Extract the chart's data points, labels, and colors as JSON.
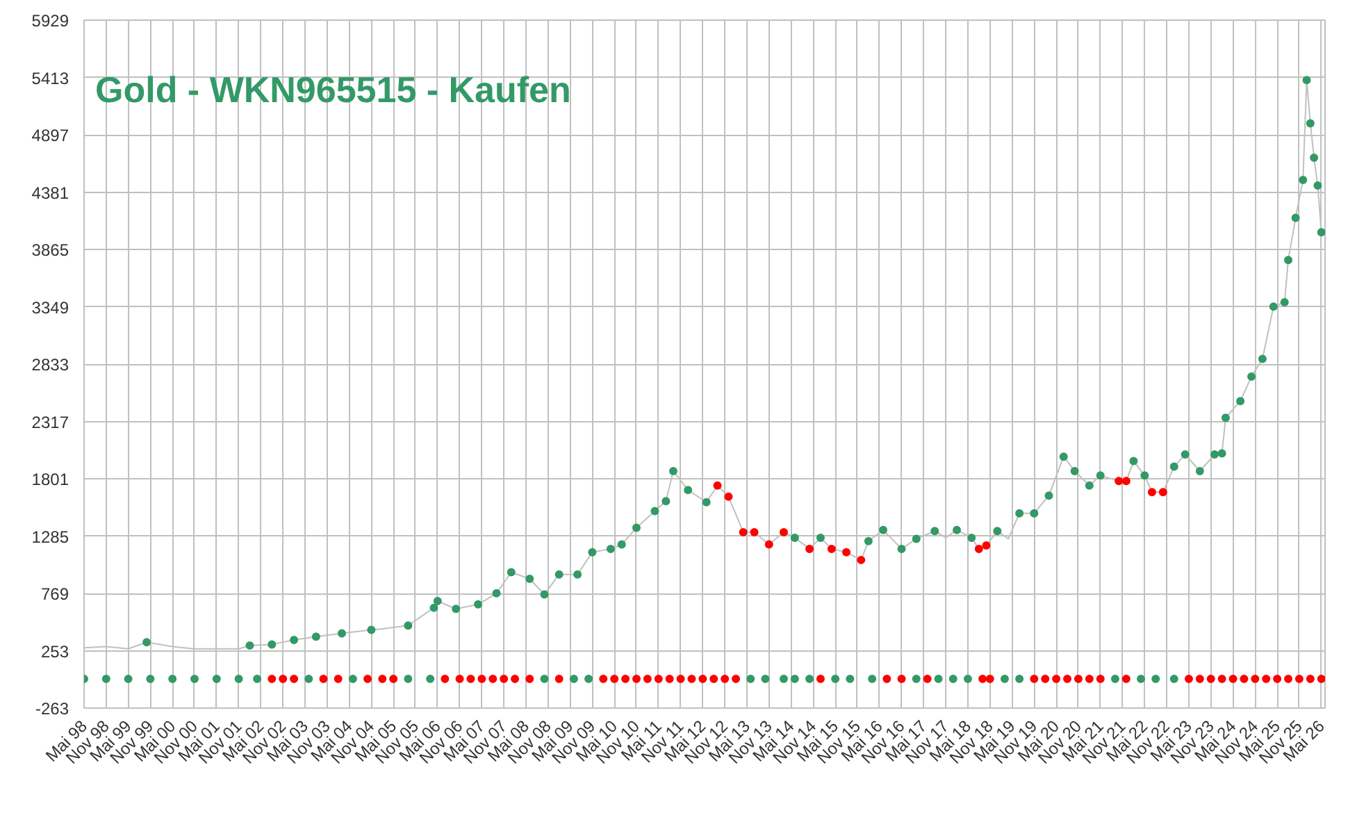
{
  "chart_data": {
    "type": "scatter",
    "title": "Gold - WKN965515 - Kaufen",
    "xlim": [
      "1998-05",
      "2026-06"
    ],
    "ylim": [
      -263,
      5929
    ],
    "yticks": [
      -263,
      253,
      769,
      1285,
      1801,
      2317,
      2833,
      3349,
      3865,
      4381,
      4897,
      5413,
      5929
    ],
    "xticks": [
      {
        "value": "1998-05",
        "label": "Mai 98"
      },
      {
        "value": "1998-11",
        "label": "Nov 98"
      },
      {
        "value": "1999-05",
        "label": "Mai 99"
      },
      {
        "value": "1999-11",
        "label": "Nov 99"
      },
      {
        "value": "2000-05",
        "label": "Mai 00"
      },
      {
        "value": "2000-11",
        "label": "Nov 00"
      },
      {
        "value": "2001-05",
        "label": "Mai 01"
      },
      {
        "value": "2001-11",
        "label": "Nov 01"
      },
      {
        "value": "2002-05",
        "label": "Mai 02"
      },
      {
        "value": "2002-11",
        "label": "Nov 02"
      },
      {
        "value": "2003-05",
        "label": "Mai 03"
      },
      {
        "value": "2003-11",
        "label": "Nov 03"
      },
      {
        "value": "2004-05",
        "label": "Mai 04"
      },
      {
        "value": "2004-11",
        "label": "Nov 04"
      },
      {
        "value": "2005-05",
        "label": "Mai 05"
      },
      {
        "value": "2005-11",
        "label": "Nov 05"
      },
      {
        "value": "2006-05",
        "label": "Mai 06"
      },
      {
        "value": "2006-11",
        "label": "Nov 06"
      },
      {
        "value": "2007-05",
        "label": "Mai 07"
      },
      {
        "value": "2007-11",
        "label": "Nov 07"
      },
      {
        "value": "2008-05",
        "label": "Mai 08"
      },
      {
        "value": "2008-11",
        "label": "Nov 08"
      },
      {
        "value": "2009-05",
        "label": "Mai 09"
      },
      {
        "value": "2009-11",
        "label": "Nov 09"
      },
      {
        "value": "2010-05",
        "label": "Mai 10"
      },
      {
        "value": "2010-11",
        "label": "Nov 10"
      },
      {
        "value": "2011-05",
        "label": "Mai 11"
      },
      {
        "value": "2011-11",
        "label": "Nov 11"
      },
      {
        "value": "2012-05",
        "label": "Mai 12"
      },
      {
        "value": "2012-11",
        "label": "Nov 12"
      },
      {
        "value": "2013-05",
        "label": "Mai 13"
      },
      {
        "value": "2013-11",
        "label": "Nov 13"
      },
      {
        "value": "2014-05",
        "label": "Mai 14"
      },
      {
        "value": "2014-11",
        "label": "Nov 14"
      },
      {
        "value": "2015-05",
        "label": "Mai 15"
      },
      {
        "value": "2015-11",
        "label": "Nov 15"
      },
      {
        "value": "2016-05",
        "label": "Mai 16"
      },
      {
        "value": "2016-11",
        "label": "Nov 16"
      },
      {
        "value": "2017-05",
        "label": "Mai 17"
      },
      {
        "value": "2017-11",
        "label": "Nov 17"
      },
      {
        "value": "2018-05",
        "label": "Mai 18"
      },
      {
        "value": "2018-11",
        "label": "Nov 18"
      },
      {
        "value": "2019-05",
        "label": "Mai 19"
      },
      {
        "value": "2019-11",
        "label": "Nov 19"
      },
      {
        "value": "2020-05",
        "label": "Mai 20"
      },
      {
        "value": "2020-11",
        "label": "Nov 20"
      },
      {
        "value": "2021-05",
        "label": "Mai 21"
      },
      {
        "value": "2021-11",
        "label": "Nov 21"
      },
      {
        "value": "2022-05",
        "label": "Mai 22"
      },
      {
        "value": "2022-11",
        "label": "Nov 22"
      },
      {
        "value": "2023-05",
        "label": "Mai 23"
      },
      {
        "value": "2023-11",
        "label": "Nov 23"
      },
      {
        "value": "2024-05",
        "label": "Mai 24"
      },
      {
        "value": "2024-11",
        "label": "Nov 24"
      },
      {
        "value": "2025-05",
        "label": "Mai 25"
      },
      {
        "value": "2025-11",
        "label": "Nov 25"
      },
      {
        "value": "2026-05",
        "label": "Mai 26"
      }
    ],
    "grid": true,
    "marker": "circle",
    "series": [
      {
        "type": "line",
        "marker": "none",
        "color": "#c0c0c0",
        "x": [
          "1998-05",
          "1998-11",
          "1999-05",
          "1999-10",
          "2000-05",
          "2000-11",
          "2001-05",
          "2001-11",
          "2002-02",
          "2002-08",
          "2003-02",
          "2003-08",
          "2004-03",
          "2004-11",
          "2005-02",
          "2005-09",
          "2006-04",
          "2006-05",
          "2006-10",
          "2007-04",
          "2007-09",
          "2008-01",
          "2008-06",
          "2008-10",
          "2009-02",
          "2009-07",
          "2009-11",
          "2010-04",
          "2010-07",
          "2010-11",
          "2011-04",
          "2011-07",
          "2011-09",
          "2012-01",
          "2012-06",
          "2012-09",
          "2012-12",
          "2013-04",
          "2013-07",
          "2013-11",
          "2014-03",
          "2014-06",
          "2014-10",
          "2015-01",
          "2015-04",
          "2015-08",
          "2015-12",
          "2016-02",
          "2016-06",
          "2016-11",
          "2017-03",
          "2017-08",
          "2017-11",
          "2018-02",
          "2018-06",
          "2018-08",
          "2018-10",
          "2019-01",
          "2019-04",
          "2019-07",
          "2019-11",
          "2020-03",
          "2020-07",
          "2020-10",
          "2021-02",
          "2021-05",
          "2021-10",
          "2021-12",
          "2022-02",
          "2022-05",
          "2022-07",
          "2022-10",
          "2023-01",
          "2023-04",
          "2023-08",
          "2023-12",
          "2024-02",
          "2024-03",
          "2024-07",
          "2024-10",
          "2025-01",
          "2025-04",
          "2025-07",
          "2025-08",
          "2025-10",
          "2025-12",
          "2026-01",
          "2026-02",
          "2026-03",
          "2026-04",
          "2026-05"
        ],
        "values": [
          280,
          290,
          270,
          330,
          290,
          270,
          270,
          270,
          300,
          310,
          350,
          380,
          410,
          440,
          450,
          480,
          640,
          700,
          630,
          670,
          770,
          960,
          900,
          760,
          940,
          940,
          1140,
          1170,
          1210,
          1360,
          1510,
          1600,
          1870,
          1700,
          1590,
          1740,
          1640,
          1320,
          1320,
          1210,
          1320,
          1270,
          1170,
          1270,
          1170,
          1140,
          1070,
          1240,
          1340,
          1170,
          1260,
          1330,
          1270,
          1340,
          1270,
          1170,
          1200,
          1330,
          1260,
          1490,
          1490,
          1650,
          2000,
          1870,
          1740,
          1830,
          1780,
          1780,
          1960,
          1830,
          1680,
          1680,
          1910,
          2020,
          1870,
          2020,
          2030,
          2350,
          2500,
          2720,
          2880,
          3350,
          3390,
          3770,
          4150,
          4490,
          5390,
          5000,
          4690,
          4440,
          4020
        ]
      },
      {
        "color": "#339966",
        "x": [
          "1999-10",
          "2002-02",
          "2002-08",
          "2003-02",
          "2003-08",
          "2004-03",
          "2004-11",
          "2005-09",
          "2006-04",
          "2006-05",
          "2006-10",
          "2007-04",
          "2007-09",
          "2008-01",
          "2008-06",
          "2008-10",
          "2009-02",
          "2009-07",
          "2009-11",
          "2010-04",
          "2010-07",
          "2010-11",
          "2011-04",
          "2011-07",
          "2011-09",
          "2012-01",
          "2012-06",
          "2014-06",
          "2015-01",
          "2016-02",
          "2016-06",
          "2016-11",
          "2017-03",
          "2017-08",
          "2018-02",
          "2018-06",
          "2019-01",
          "2019-07",
          "2019-11",
          "2020-03",
          "2020-07",
          "2020-10",
          "2021-02",
          "2021-05",
          "2022-02",
          "2022-05",
          "2023-01",
          "2023-04",
          "2023-08",
          "2023-12",
          "2024-02",
          "2024-03",
          "2024-07",
          "2024-10",
          "2025-01",
          "2025-04",
          "2025-07",
          "2025-08",
          "2025-10",
          "2025-12",
          "2026-01",
          "2026-02",
          "2026-03",
          "2026-04",
          "2026-05"
        ],
        "values": [
          330,
          300,
          310,
          350,
          380,
          410,
          440,
          480,
          640,
          700,
          630,
          670,
          770,
          960,
          900,
          760,
          940,
          940,
          1140,
          1170,
          1210,
          1360,
          1510,
          1600,
          1870,
          1700,
          1590,
          1270,
          1270,
          1240,
          1340,
          1170,
          1260,
          1330,
          1340,
          1270,
          1330,
          1490,
          1490,
          1650,
          2000,
          1870,
          1740,
          1830,
          1960,
          1830,
          1910,
          2020,
          1870,
          2020,
          2030,
          2350,
          2500,
          2720,
          2880,
          3350,
          3390,
          3770,
          4150,
          4490,
          5390,
          5000,
          4690,
          4440,
          4020
        ]
      },
      {
        "color": "#ff0000",
        "x": [
          "2012-09",
          "2012-12",
          "2013-04",
          "2013-07",
          "2013-11",
          "2014-03",
          "2014-10",
          "2015-04",
          "2015-08",
          "2015-12",
          "2018-08",
          "2018-10",
          "2021-10",
          "2021-12",
          "2022-07",
          "2022-10"
        ],
        "values": [
          1740,
          1640,
          1320,
          1320,
          1210,
          1320,
          1170,
          1170,
          1140,
          1070,
          1170,
          1200,
          1780,
          1780,
          1680,
          1680
        ]
      },
      {
        "color": "#339966",
        "x": [
          "1998-05",
          "1998-11",
          "1999-05",
          "1999-11",
          "2000-05",
          "2000-11",
          "2001-05",
          "2001-11",
          "2002-04",
          "2003-06",
          "2004-06",
          "2005-09",
          "2006-03",
          "2008-10",
          "2009-06",
          "2009-10",
          "2013-06",
          "2013-10",
          "2014-03",
          "2014-06",
          "2014-10",
          "2015-05",
          "2015-09",
          "2016-03",
          "2017-03",
          "2017-09",
          "2018-01",
          "2018-05",
          "2019-03",
          "2019-07",
          "2021-09",
          "2022-04",
          "2022-08",
          "2023-01"
        ],
        "values": [
          0,
          0,
          0,
          0,
          0,
          0,
          0,
          0,
          0,
          0,
          0,
          0,
          0,
          0,
          0,
          0,
          0,
          0,
          0,
          0,
          0,
          0,
          0,
          0,
          0,
          0,
          0,
          0,
          0,
          0,
          0,
          0,
          0,
          0
        ]
      },
      {
        "color": "#ff0000",
        "x": [
          "2002-08",
          "2002-11",
          "2003-02",
          "2003-10",
          "2004-02",
          "2004-10",
          "2005-02",
          "2005-05",
          "2006-07",
          "2006-11",
          "2007-02",
          "2007-05",
          "2007-08",
          "2007-11",
          "2008-02",
          "2008-06",
          "2009-02",
          "2010-02",
          "2010-05",
          "2010-08",
          "2010-11",
          "2011-02",
          "2011-05",
          "2011-08",
          "2011-11",
          "2012-02",
          "2012-05",
          "2012-08",
          "2012-11",
          "2013-02",
          "2015-01",
          "2016-07",
          "2016-11",
          "2017-06",
          "2018-09",
          "2018-11",
          "2019-11",
          "2020-02",
          "2020-05",
          "2020-08",
          "2020-11",
          "2021-02",
          "2021-05",
          "2021-12",
          "2023-05",
          "2023-08",
          "2023-11",
          "2024-02",
          "2024-05",
          "2024-08",
          "2024-11",
          "2025-02",
          "2025-05",
          "2025-08",
          "2025-11",
          "2026-02",
          "2026-05"
        ],
        "values": [
          0,
          0,
          0,
          0,
          0,
          0,
          0,
          0,
          0,
          0,
          0,
          0,
          0,
          0,
          0,
          0,
          0,
          0,
          0,
          0,
          0,
          0,
          0,
          0,
          0,
          0,
          0,
          0,
          0,
          0,
          0,
          0,
          0,
          0,
          0,
          0,
          0,
          0,
          0,
          0,
          0,
          0,
          0,
          0,
          0,
          0,
          0,
          0,
          0,
          0,
          0,
          0,
          0,
          0,
          0,
          0,
          0
        ]
      }
    ]
  }
}
